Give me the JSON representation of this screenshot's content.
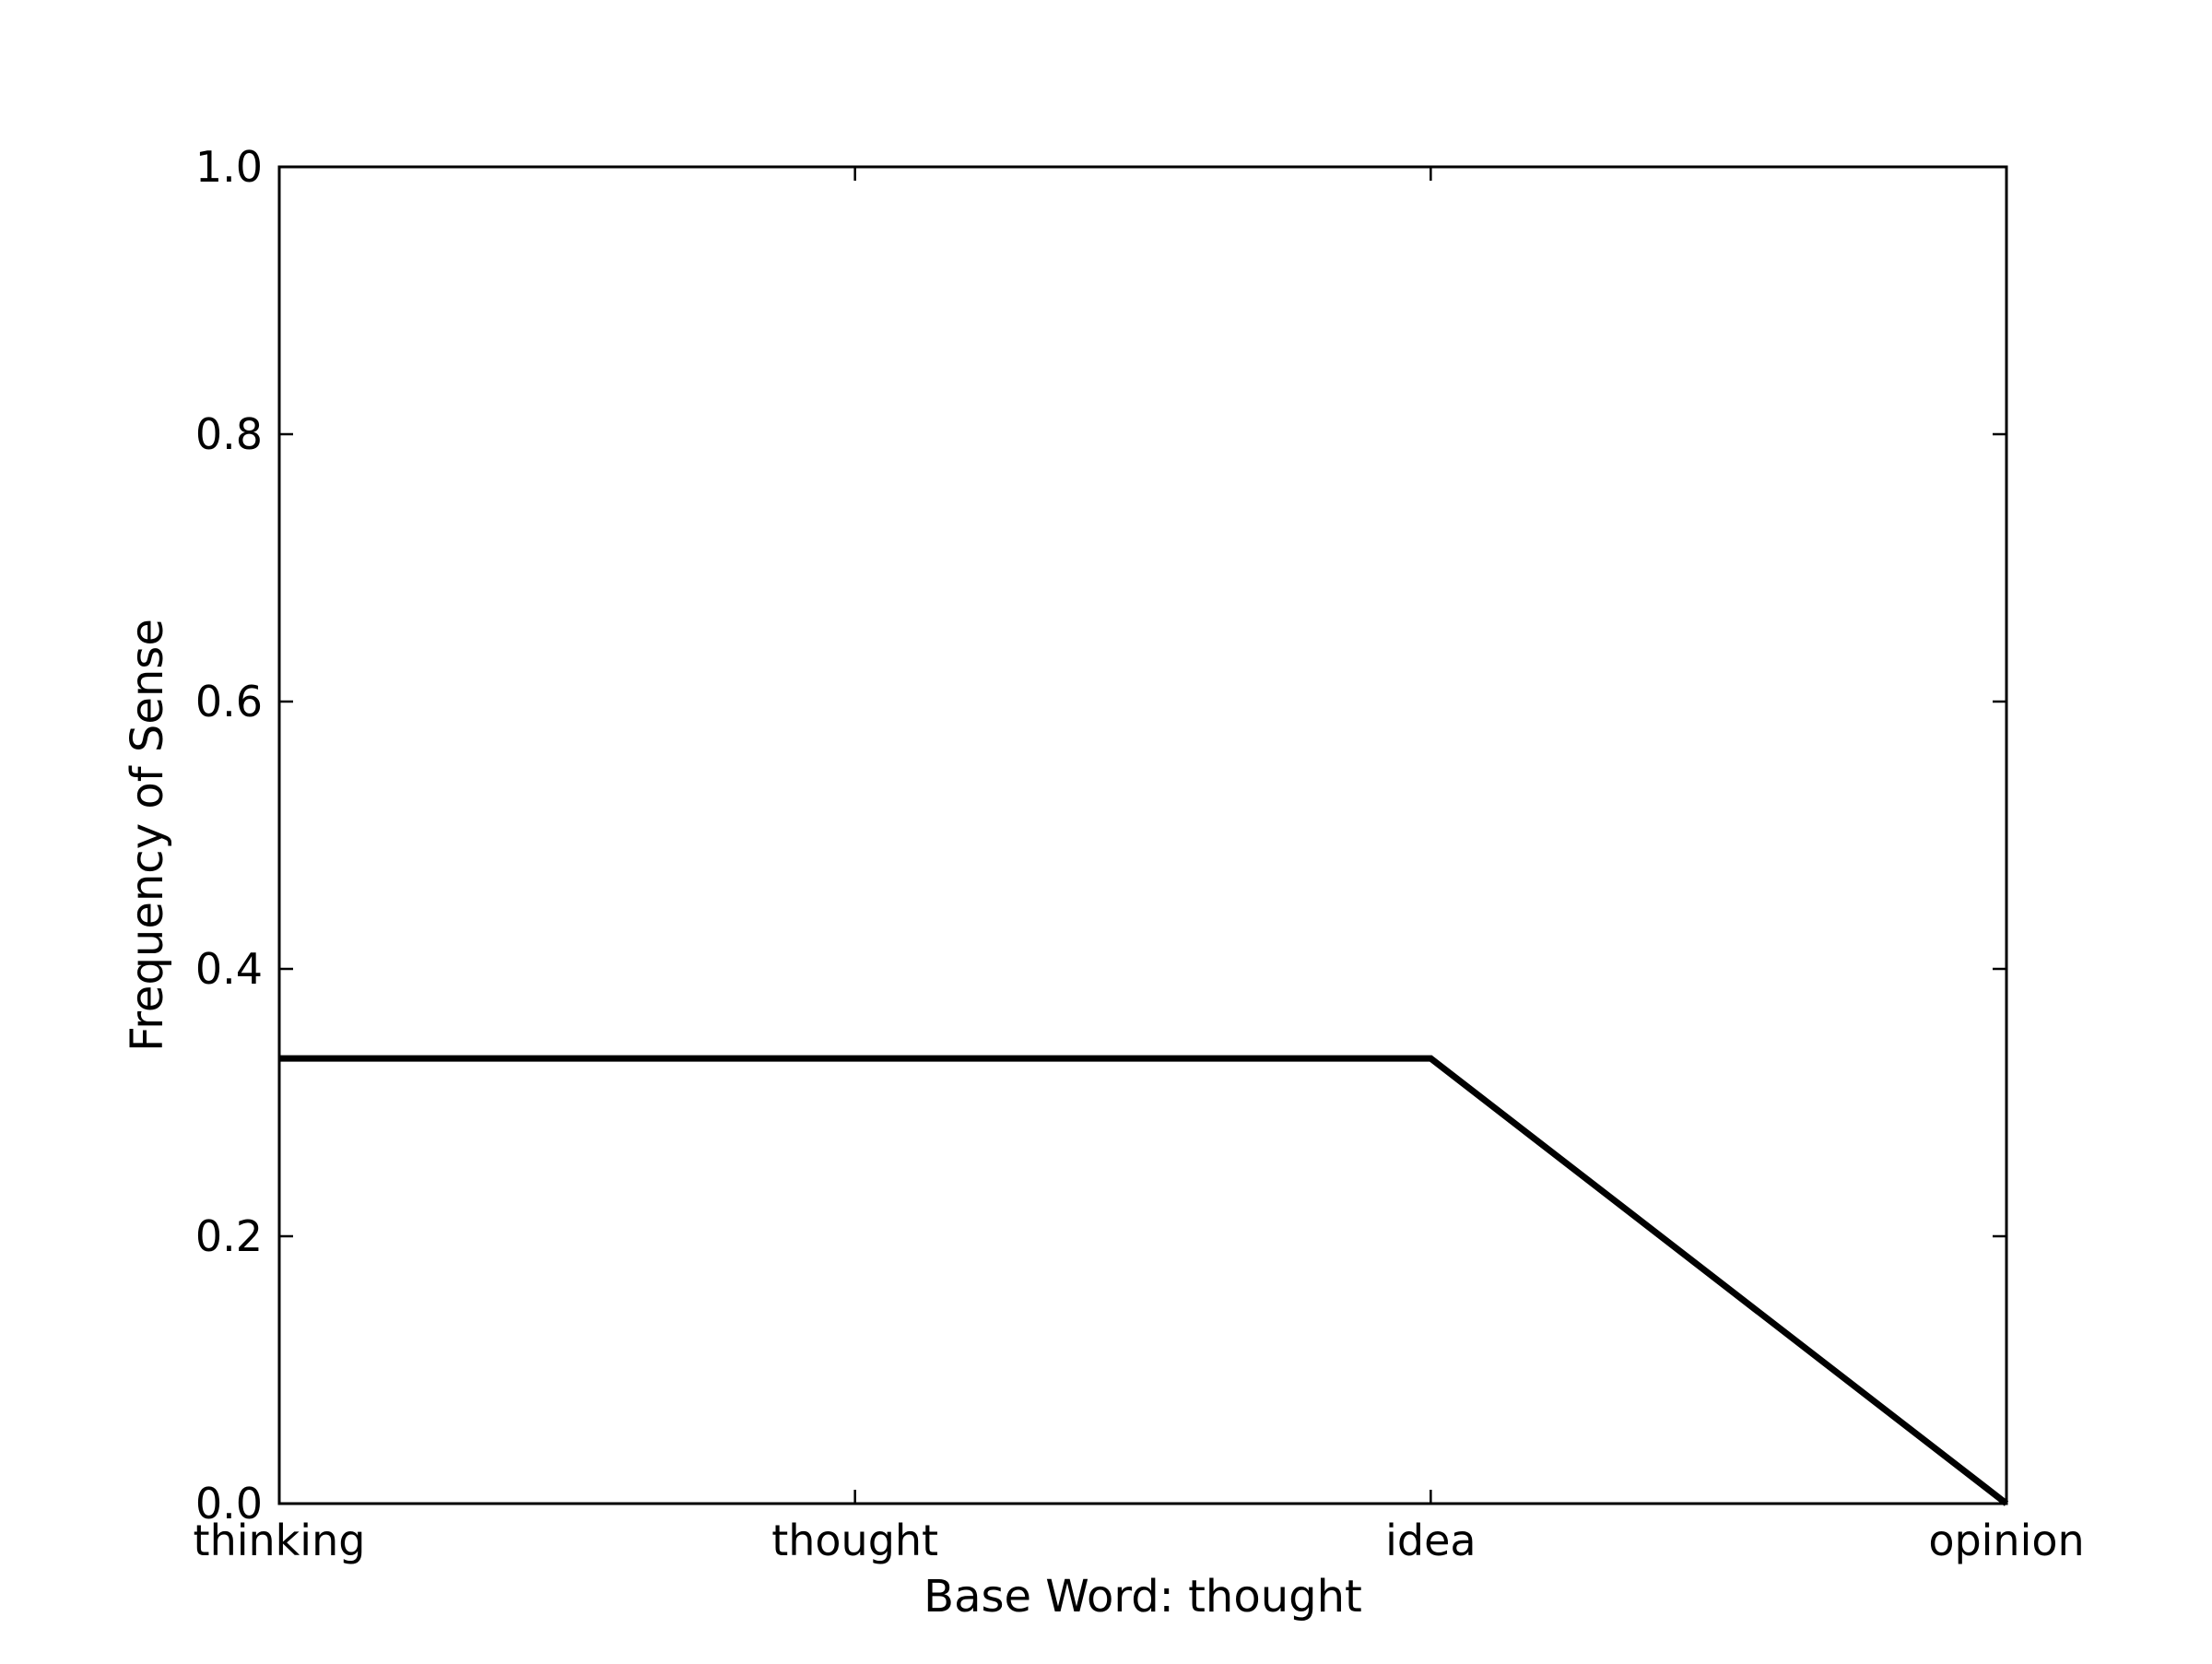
{
  "chart_data": {
    "type": "line",
    "title": "",
    "xlabel": "Base Word: thought",
    "ylabel": "Frequency of Sense",
    "categories": [
      "thinking",
      "thought",
      "idea",
      "opinion"
    ],
    "series": [
      {
        "values": [
          0.333,
          0.333,
          0.333,
          0.0
        ],
        "color": "#000000"
      }
    ],
    "ylim": [
      0,
      1.0
    ],
    "yticks": [
      "0.0",
      "0.2",
      "0.4",
      "0.6",
      "0.8",
      "1.0"
    ],
    "grid": false,
    "legend": "none"
  }
}
